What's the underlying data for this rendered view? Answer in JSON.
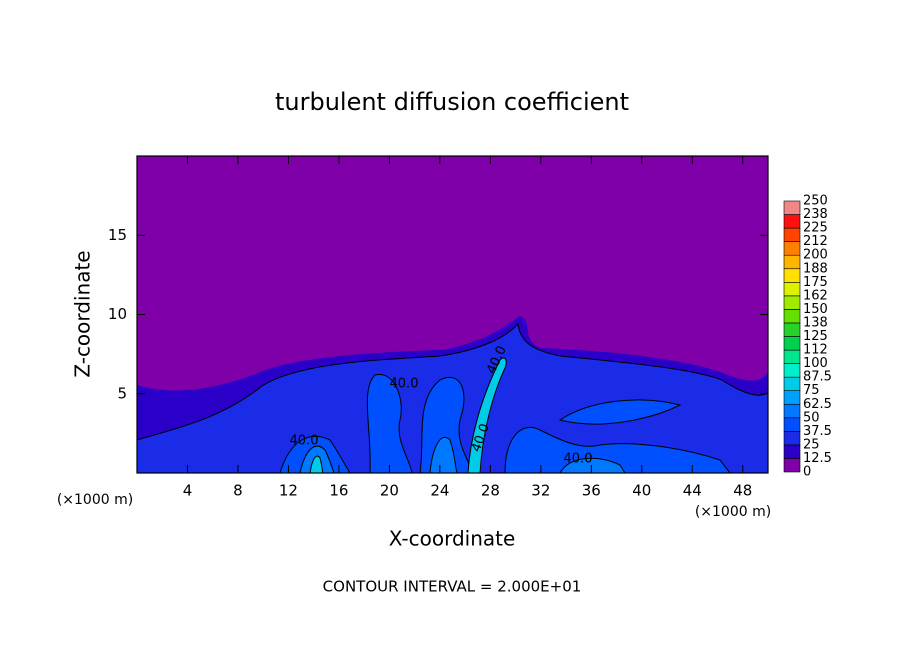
{
  "chart_data": {
    "type": "contour",
    "title": "turbulent diffusion coefficient",
    "xlabel": "X-coordinate",
    "ylabel": "Z-coordinate",
    "y_unit": "(×1000 m)",
    "x_unit": "(×1000 m)",
    "xlim": [
      0,
      50
    ],
    "ylim": [
      0,
      20
    ],
    "xticks": [
      4,
      8,
      12,
      16,
      20,
      24,
      28,
      32,
      36,
      40,
      44,
      48
    ],
    "yticks": [
      5,
      10,
      15
    ],
    "colorbar": {
      "levels": [
        0,
        12.5,
        25,
        37.5,
        50,
        62.5,
        75,
        87.5,
        100,
        112,
        125,
        138,
        150,
        162,
        175,
        188,
        200,
        212,
        225,
        238,
        250
      ],
      "colors": [
        "#7f00a8",
        "#2a00c8",
        "#1a2ce8",
        "#0050ff",
        "#0078ff",
        "#00a0ff",
        "#00cce8",
        "#00eec8",
        "#00e68c",
        "#00d250",
        "#28d228",
        "#64e000",
        "#a0ec00",
        "#dcf000",
        "#ffe000",
        "#ffb400",
        "#ff8000",
        "#ff4400",
        "#ff1010",
        "#f08888"
      ]
    },
    "contour_labels": [
      "40.0",
      "40.0",
      "40.0",
      "40.0",
      "40.0"
    ],
    "footer": "CONTOUR INTERVAL = 2.000E+01"
  }
}
